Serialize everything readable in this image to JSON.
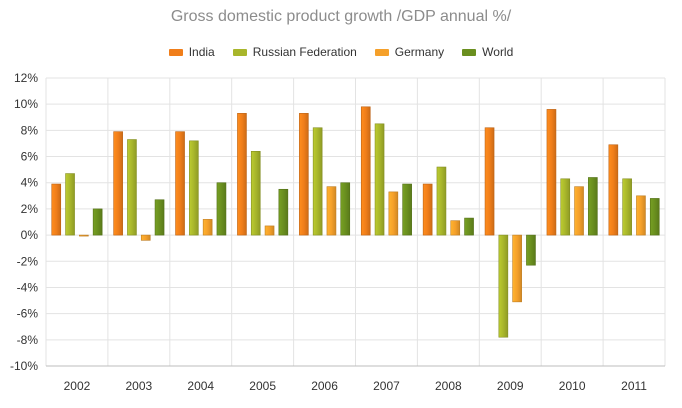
{
  "chart_data": {
    "type": "bar",
    "title": "Gross domestic product growth /GDP annual %/",
    "categories": [
      "2002",
      "2003",
      "2004",
      "2005",
      "2006",
      "2007",
      "2008",
      "2009",
      "2010",
      "2011"
    ],
    "series": [
      {
        "name": "India",
        "color": "#f07e1a",
        "values": [
          3.9,
          7.9,
          7.9,
          9.3,
          9.3,
          9.8,
          3.9,
          8.2,
          9.6,
          6.9
        ]
      },
      {
        "name": "Russian Federation",
        "color": "#a8b62b",
        "values": [
          4.7,
          7.3,
          7.2,
          6.4,
          8.2,
          8.5,
          5.2,
          -7.8,
          4.3,
          4.3
        ]
      },
      {
        "name": "Germany",
        "color": "#f5a02a",
        "values": [
          0.0,
          -0.4,
          1.2,
          0.7,
          3.7,
          3.3,
          1.1,
          -5.1,
          3.7,
          3.0
        ]
      },
      {
        "name": "World",
        "color": "#6a8f1f",
        "values": [
          2.0,
          2.7,
          4.0,
          3.5,
          4.0,
          3.9,
          1.3,
          -2.3,
          4.4,
          2.8
        ]
      }
    ],
    "yticks": [
      "12%",
      "10%",
      "8%",
      "6%",
      "4%",
      "2%",
      "0%",
      "-2%",
      "-4%",
      "-6%",
      "-8%",
      "-10%"
    ],
    "ylim": [
      -10,
      12
    ],
    "grid": true,
    "legend_position": "top-center"
  }
}
